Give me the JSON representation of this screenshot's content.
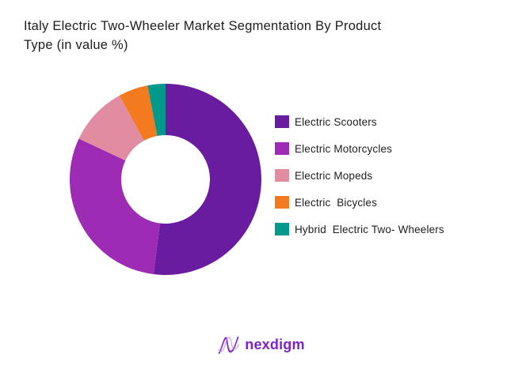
{
  "page": {
    "background": "#ffffff"
  },
  "title": {
    "text": "Italy Electric Two-Wheeler Market Segmentation By Product Type (in value %)",
    "line1": "Italy Electric Two-Wheeler Market Segmentation By Product",
    "line2": "Type (in value %)",
    "color": "#1d1d1f"
  },
  "chart_data": {
    "type": "pie",
    "subtype": "donut",
    "title": "Italy Electric Two-Wheeler Market Segmentation By Product Type (in value %)",
    "unit": "value %",
    "values_labeled": false,
    "start_angle_deg": 0,
    "direction": "clockwise",
    "inner_radius_ratio": 0.46,
    "legend_position": "right",
    "series": [
      {
        "name": "Electric Scooters",
        "value": 52,
        "color": "#6A1CA0"
      },
      {
        "name": "Electric Motorcycles",
        "value": 30,
        "color": "#9D2BB3"
      },
      {
        "name": "Electric Mopeds",
        "value": 10,
        "color": "#E18CA1"
      },
      {
        "name": "Electric  Bicycles",
        "value": 5,
        "color": "#F47A20"
      },
      {
        "name": "Hybrid  Electric Two- Wheelers",
        "value": 3,
        "color": "#00998C"
      }
    ]
  },
  "footer": {
    "logo_text": "nexdigm",
    "logo_color": "#7E22C8"
  }
}
